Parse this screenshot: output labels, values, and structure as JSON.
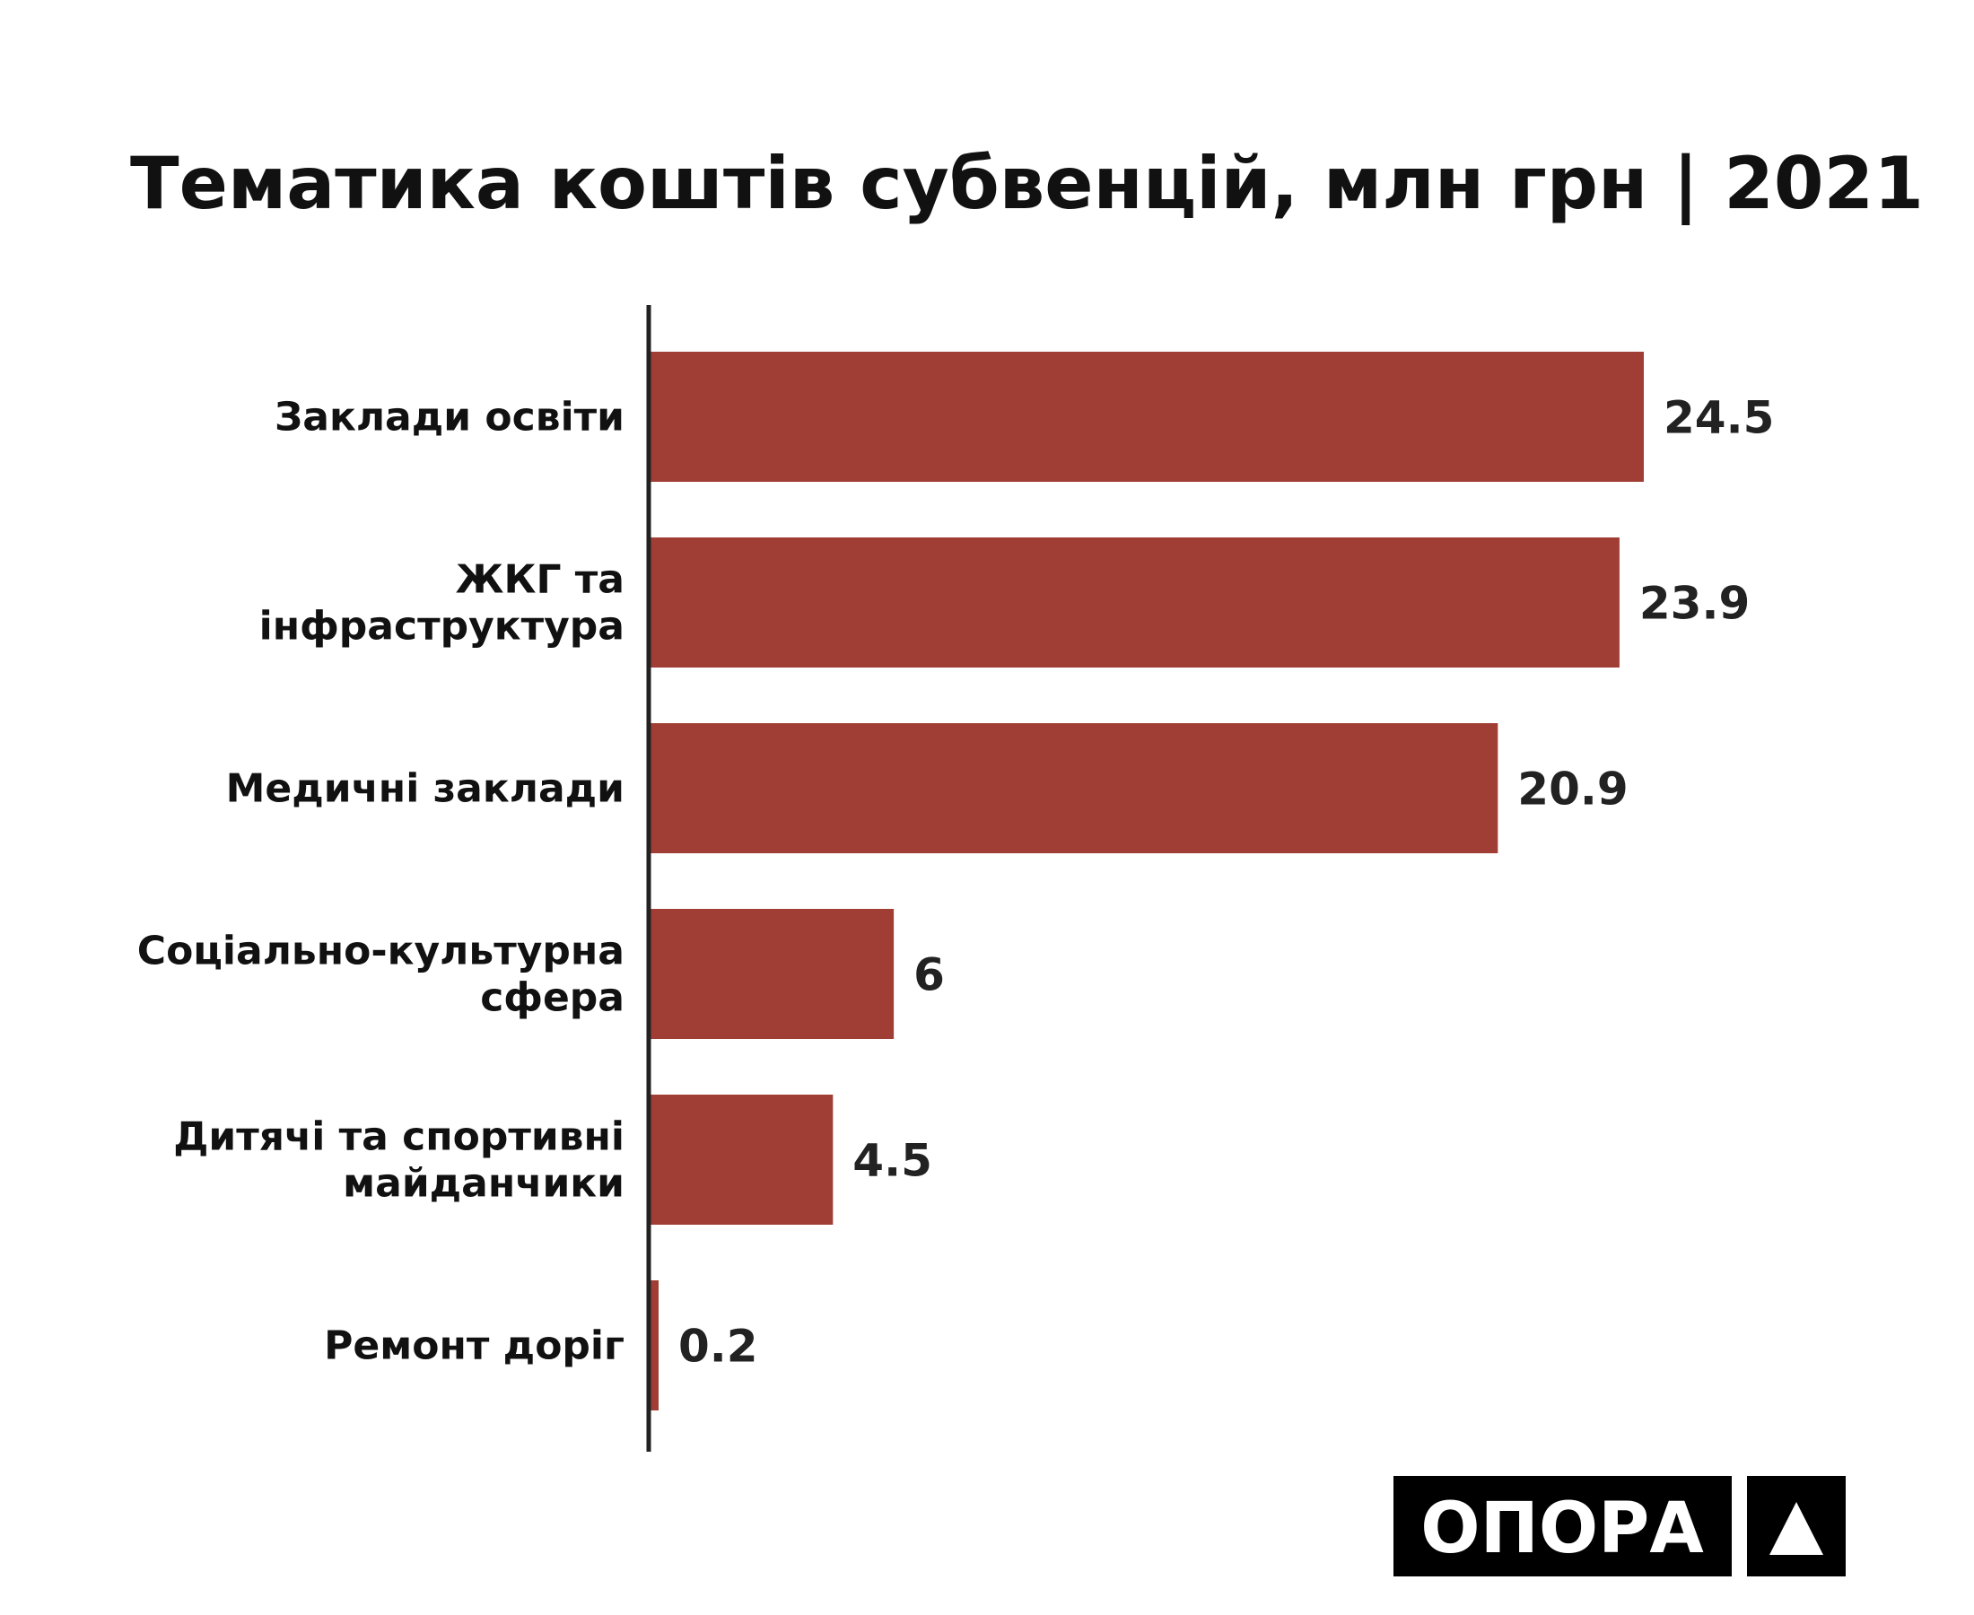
{
  "chart_data": {
    "type": "bar",
    "orientation": "horizontal",
    "title": "Тематика коштів субвенцій, млн грн | 2021",
    "categories": [
      [
        "Заклади освіти"
      ],
      [
        "ЖКГ та",
        "інфраструктура"
      ],
      [
        "Медичні заклади"
      ],
      [
        "Соціально-культурна",
        "сфера"
      ],
      [
        "Дитячі та спортивні",
        "майданчики"
      ],
      [
        "Ремонт доріг"
      ]
    ],
    "values": [
      24.5,
      23.9,
      20.9,
      6,
      4.5,
      0.2
    ],
    "value_labels": [
      "24.5",
      "23.9",
      "20.9",
      "6",
      "4.5",
      "0.2"
    ],
    "xlim": [
      0,
      24.5
    ],
    "grid": false,
    "legend": "none",
    "bar_color": "#a03e35"
  },
  "logo": {
    "text": "ОПОРА",
    "colors": {
      "box": "#000000",
      "text": "#ffffff"
    }
  }
}
